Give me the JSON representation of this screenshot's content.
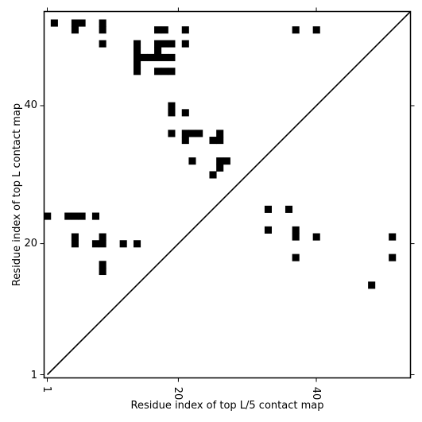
{
  "chart_data": {
    "type": "heatmap",
    "title": "",
    "xlabel": "Residue index of top L/5 contact map",
    "ylabel": "Residue index of top L contact map",
    "xlim": [
      1,
      54
    ],
    "ylim": [
      1,
      54
    ],
    "x_ticks": [
      1,
      20,
      40
    ],
    "y_ticks": [
      1,
      20,
      40
    ],
    "x_tick_labels": [
      "1",
      "20",
      "40"
    ],
    "y_tick_labels": [
      "1",
      "20",
      "40"
    ],
    "x_tick_rotation": "vertical",
    "grid": false,
    "diagonal": true,
    "cell_color": "#000000",
    "cells": [
      [
        2,
        52
      ],
      [
        5,
        52
      ],
      [
        5,
        51
      ],
      [
        6,
        52
      ],
      [
        9,
        52
      ],
      [
        9,
        51
      ],
      [
        9,
        49
      ],
      [
        17,
        51
      ],
      [
        18,
        51
      ],
      [
        21,
        51
      ],
      [
        21,
        49
      ],
      [
        37,
        51
      ],
      [
        40,
        51
      ],
      [
        14,
        49
      ],
      [
        14,
        48
      ],
      [
        14,
        47
      ],
      [
        14,
        46
      ],
      [
        14,
        45
      ],
      [
        15,
        47
      ],
      [
        16,
        47
      ],
      [
        17,
        49
      ],
      [
        17,
        48
      ],
      [
        17,
        47
      ],
      [
        18,
        49
      ],
      [
        18,
        47
      ],
      [
        19,
        49
      ],
      [
        19,
        47
      ],
      [
        17,
        45
      ],
      [
        18,
        45
      ],
      [
        19,
        45
      ],
      [
        19,
        40
      ],
      [
        19,
        39
      ],
      [
        21,
        39
      ],
      [
        19,
        36
      ],
      [
        21,
        36
      ],
      [
        21,
        35
      ],
      [
        22,
        36
      ],
      [
        23,
        36
      ],
      [
        25,
        35
      ],
      [
        26,
        36
      ],
      [
        26,
        35
      ],
      [
        22,
        32
      ],
      [
        26,
        32
      ],
      [
        26,
        31
      ],
      [
        27,
        32
      ],
      [
        25,
        30
      ],
      [
        1,
        24
      ],
      [
        4,
        24
      ],
      [
        5,
        24
      ],
      [
        6,
        24
      ],
      [
        8,
        24
      ],
      [
        5,
        21
      ],
      [
        5,
        20
      ],
      [
        8,
        20
      ],
      [
        9,
        21
      ],
      [
        9,
        20
      ],
      [
        12,
        20
      ],
      [
        14,
        20
      ],
      [
        9,
        17
      ],
      [
        9,
        16
      ],
      [
        33,
        25
      ],
      [
        36,
        25
      ],
      [
        33,
        22
      ],
      [
        37,
        22
      ],
      [
        37,
        21
      ],
      [
        40,
        21
      ],
      [
        37,
        18
      ],
      [
        51,
        21
      ],
      [
        51,
        18
      ],
      [
        48,
        14
      ]
    ]
  }
}
